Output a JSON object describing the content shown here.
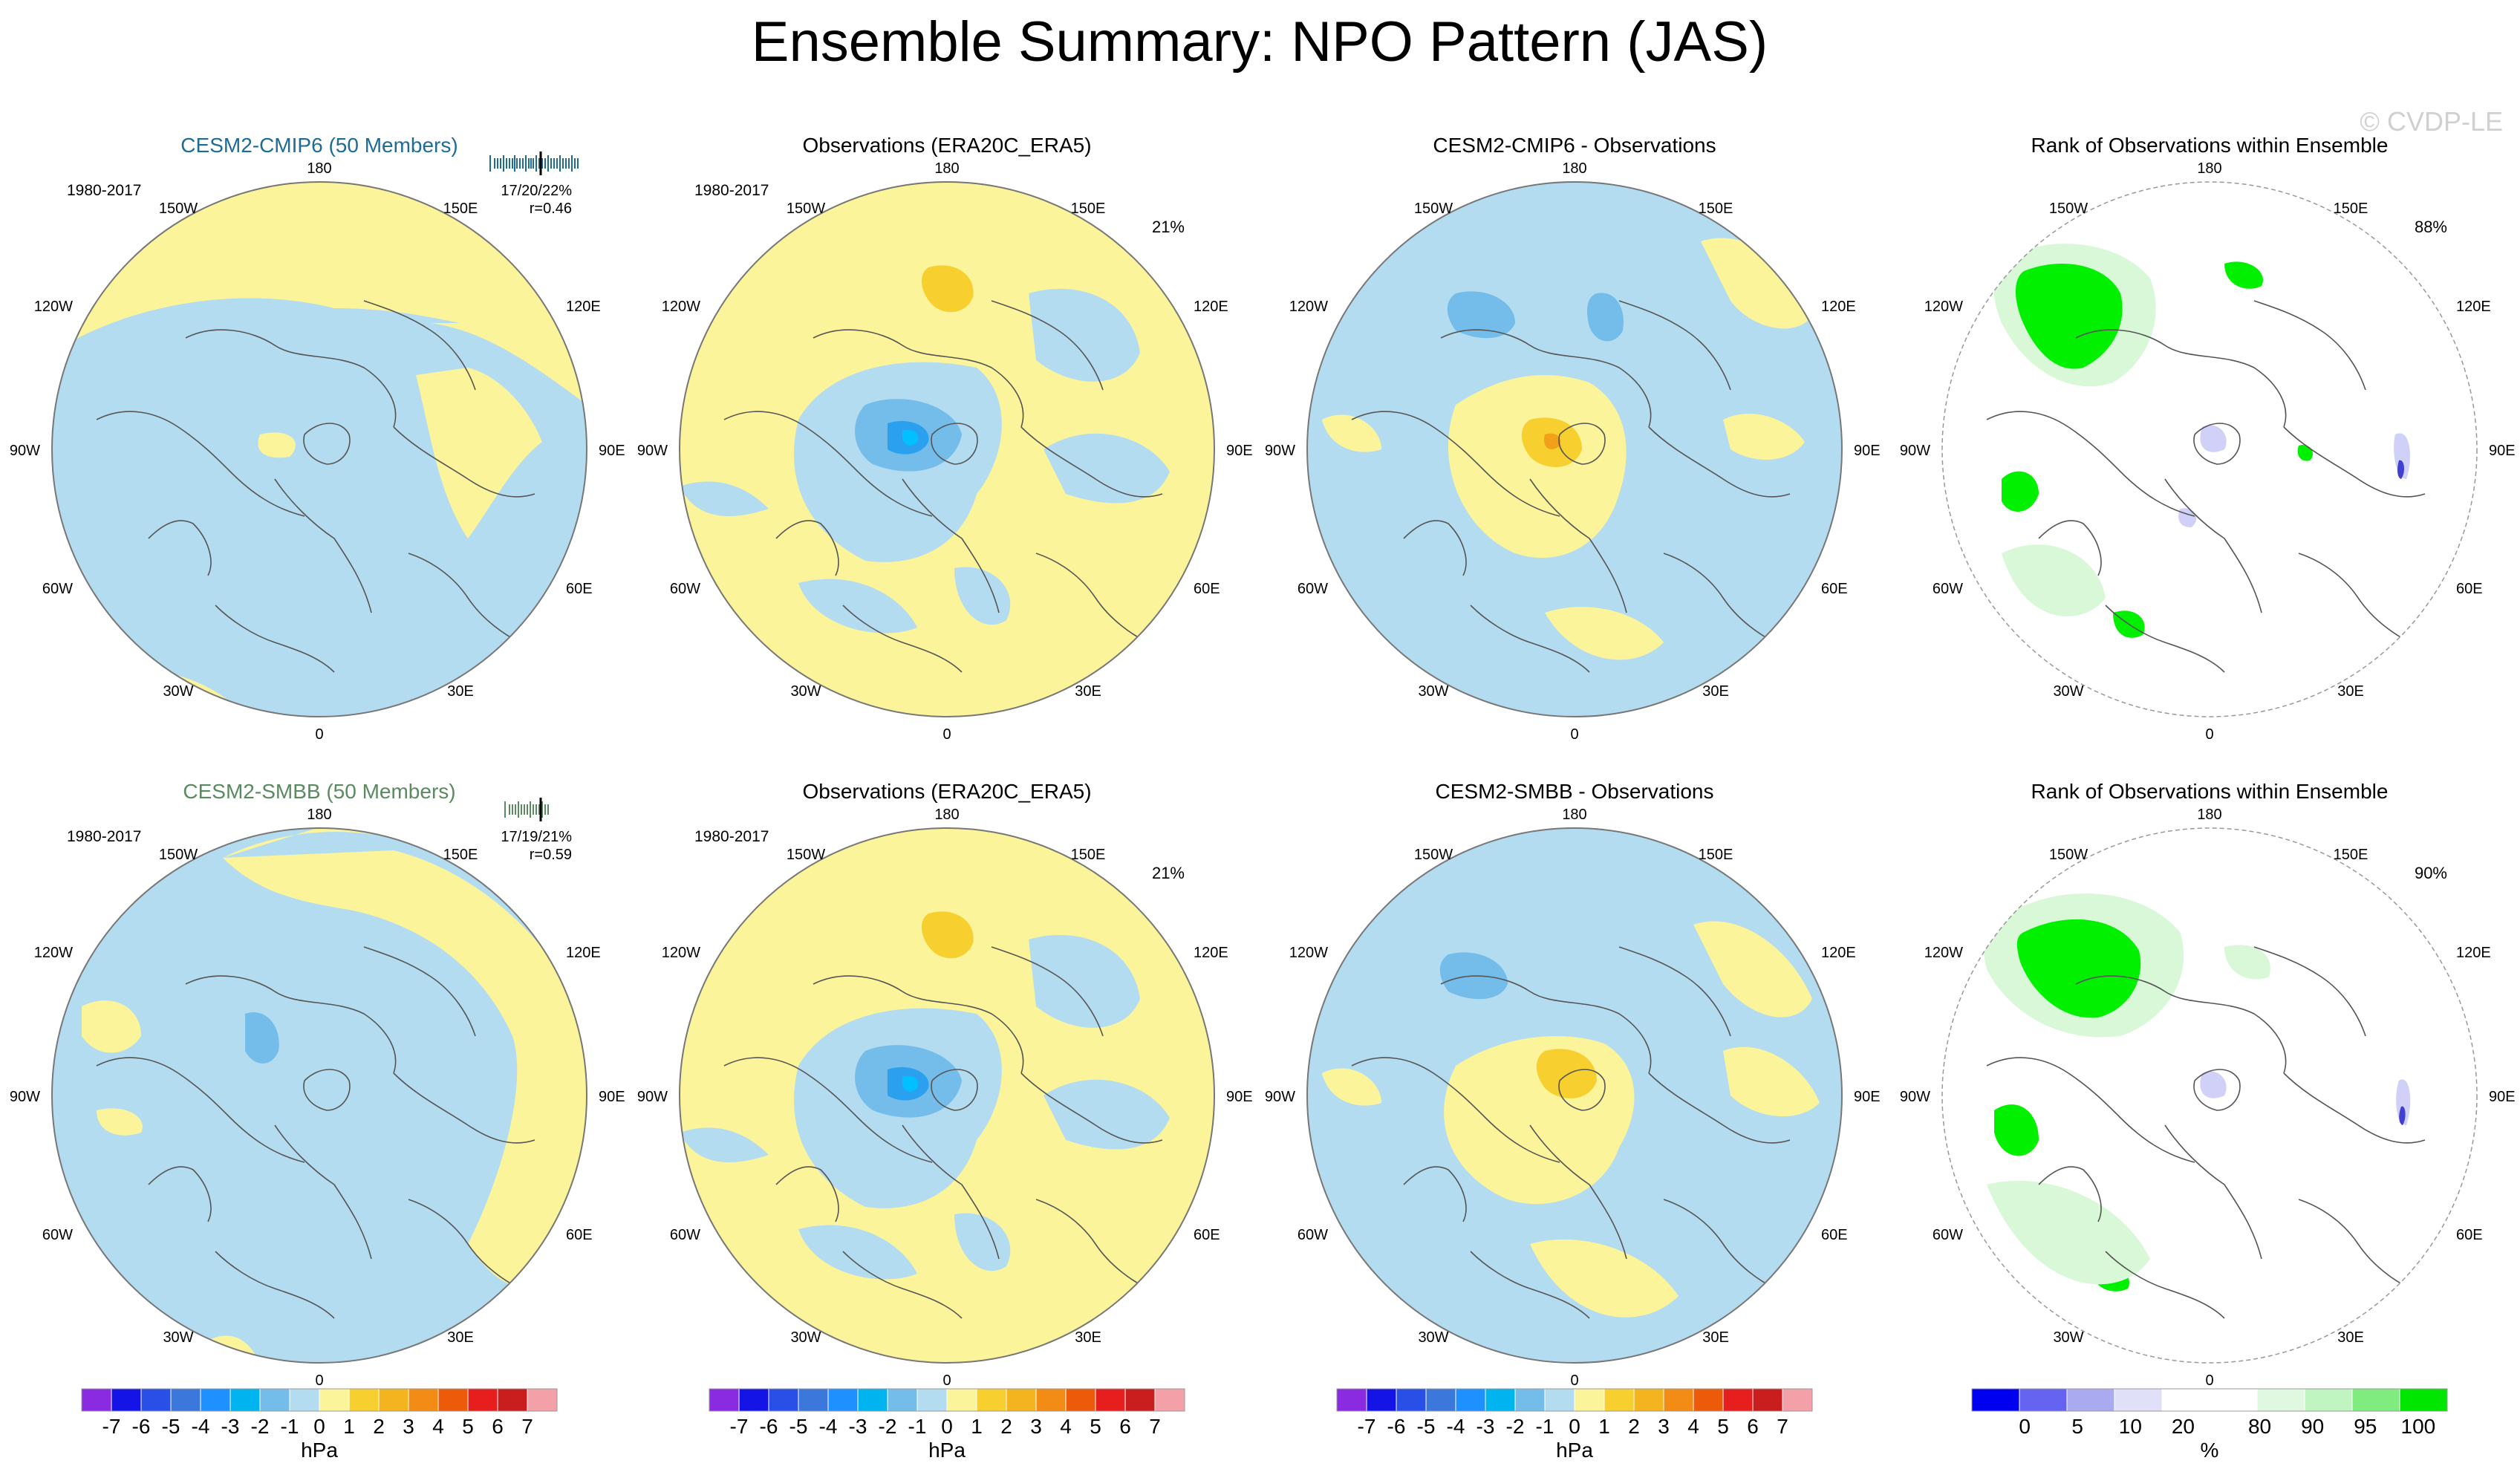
{
  "figure": {
    "title": "Ensemble Summary: NPO Pattern (JAS)",
    "watermark": "© CVDP-LE"
  },
  "colors": {
    "blue_light": "#b4dcf0",
    "blue_mid": "#74bdea",
    "blue_dark": "#2aa0ee",
    "blue_core": "#00c0ff",
    "yellow_light": "#fbf49a",
    "yellow_mid": "#f7cf2e",
    "orange": "#f2a01a",
    "green_bright": "#00f000",
    "green_light": "#d8f8d8",
    "purple_light": "#d0d0f8",
    "purple_dark": "#4040d0",
    "coast": "#555555",
    "cmip6_title": "#1e6c96",
    "smbb_title": "#5a8a60"
  },
  "map_labels": {
    "top": "180",
    "bottom": "0",
    "left": "90W",
    "right": "90E",
    "upper_left_2": "150W",
    "upper_left_1": "120W",
    "lower_left_1": "60W",
    "lower_left_2": "30W",
    "upper_right_2": "150E",
    "upper_right_1": "120E",
    "lower_right_1": "60E",
    "lower_right_2": "30E"
  },
  "panels": [
    {
      "title": "CESM2-CMIP6 (50 Members)",
      "title_color": "cmip6",
      "period": "1980-2017",
      "stat_line1": "17/20/22%",
      "stat_line2": "r=0.46",
      "pct": "",
      "kind": "model1"
    },
    {
      "title": "Observations (ERA20C_ERA5)",
      "title_color": "black",
      "period": "1980-2017",
      "stat_line1": "",
      "stat_line2": "",
      "pct": "21%",
      "kind": "obs"
    },
    {
      "title": "CESM2-CMIP6 - Observations",
      "title_color": "black",
      "period": "",
      "stat_line1": "",
      "stat_line2": "",
      "pct": "",
      "kind": "diff1"
    },
    {
      "title": "Rank of Observations within Ensemble",
      "title_color": "black",
      "period": "",
      "stat_line1": "",
      "stat_line2": "",
      "pct": "88%",
      "kind": "rank1"
    },
    {
      "title": "CESM2-SMBB (50 Members)",
      "title_color": "smbb",
      "period": "1980-2017",
      "stat_line1": "17/19/21%",
      "stat_line2": "r=0.59",
      "pct": "",
      "kind": "model2"
    },
    {
      "title": "Observations (ERA20C_ERA5)",
      "title_color": "black",
      "period": "1980-2017",
      "stat_line1": "",
      "stat_line2": "",
      "pct": "21%",
      "kind": "obs"
    },
    {
      "title": "CESM2-SMBB - Observations",
      "title_color": "black",
      "period": "",
      "stat_line1": "",
      "stat_line2": "",
      "pct": "",
      "kind": "diff2"
    },
    {
      "title": "Rank of Observations within Ensemble",
      "title_color": "black",
      "period": "",
      "stat_line1": "",
      "stat_line2": "",
      "pct": "90%",
      "kind": "rank2"
    }
  ],
  "colorbars": [
    {
      "unit": "hPa",
      "labels": [
        "-7",
        "-6",
        "-5",
        "-4",
        "-3",
        "-2",
        "-1",
        "0",
        "1",
        "2",
        "3",
        "4",
        "5",
        "6",
        "7"
      ],
      "colors": [
        "#8a2be2",
        "#1414e6",
        "#2850e6",
        "#3c78dc",
        "#1e90ff",
        "#00b4f0",
        "#74bdea",
        "#b4dcf0",
        "#fbf49a",
        "#f7cf2e",
        "#f4b41e",
        "#f28c14",
        "#ec5a0a",
        "#e61e1e",
        "#c81e1e",
        "#f4a0a8"
      ]
    },
    {
      "unit": "hPa",
      "labels": [
        "-7",
        "-6",
        "-5",
        "-4",
        "-3",
        "-2",
        "-1",
        "0",
        "1",
        "2",
        "3",
        "4",
        "5",
        "6",
        "7"
      ],
      "colors": [
        "#8a2be2",
        "#1414e6",
        "#2850e6",
        "#3c78dc",
        "#1e90ff",
        "#00b4f0",
        "#74bdea",
        "#b4dcf0",
        "#fbf49a",
        "#f7cf2e",
        "#f4b41e",
        "#f28c14",
        "#ec5a0a",
        "#e61e1e",
        "#c81e1e",
        "#f4a0a8"
      ]
    },
    {
      "unit": "hPa",
      "labels": [
        "-7",
        "-6",
        "-5",
        "-4",
        "-3",
        "-2",
        "-1",
        "0",
        "1",
        "2",
        "3",
        "4",
        "5",
        "6",
        "7"
      ],
      "colors": [
        "#8a2be2",
        "#1414e6",
        "#2850e6",
        "#3c78dc",
        "#1e90ff",
        "#00b4f0",
        "#74bdea",
        "#b4dcf0",
        "#fbf49a",
        "#f7cf2e",
        "#f4b41e",
        "#f28c14",
        "#ec5a0a",
        "#e61e1e",
        "#c81e1e",
        "#f4a0a8"
      ]
    },
    {
      "unit": "%",
      "labels": [
        "0",
        "5",
        "10",
        "20",
        "80",
        "90",
        "95",
        "100"
      ],
      "colors": [
        "#0000f0",
        "#6464f0",
        "#aaaaf0",
        "#e0e0f8",
        "#ffffff",
        "#ffffff",
        "#e0f8e0",
        "#c0f4c0",
        "#80ec80",
        "#00e600"
      ]
    }
  ],
  "chart_data": {
    "type": "polar-stereographic maps (contour fill)",
    "title": "Ensemble Summary: NPO Pattern (JAS)",
    "units": "hPa",
    "maps": [
      {
        "name": "CESM2-CMIP6 (50 Members)",
        "period": "1980-2017",
        "stats": "17/20/22%",
        "r": 0.46,
        "range_hPa": [
          -1,
          1
        ]
      },
      {
        "name": "Observations (ERA20C_ERA5)",
        "period": "1980-2017",
        "pct_variance": 21,
        "extrema_hPa": {
          "arctic_low": -3,
          "pacific_high": 2
        }
      },
      {
        "name": "CESM2-CMIP6 - Observations",
        "extrema_hPa": {
          "arctic": 3,
          "pacific": -2
        }
      },
      {
        "name": "Rank of Observations within Ensemble",
        "pct_area": 88,
        "rank_bins": [
          "0",
          "5",
          "10",
          "20",
          "80",
          "90",
          "95",
          "100"
        ]
      },
      {
        "name": "CESM2-SMBB (50 Members)",
        "period": "1980-2017",
        "stats": "17/19/21%",
        "r": 0.59,
        "extrema_hPa": {
          "arctic_low": -2
        }
      },
      {
        "name": "Observations (ERA20C_ERA5)",
        "period": "1980-2017",
        "pct_variance": 21,
        "extrema_hPa": {
          "arctic_low": -3,
          "pacific_high": 2
        }
      },
      {
        "name": "CESM2-SMBB - Observations",
        "extrema_hPa": {
          "arctic": 2,
          "pacific": -2
        }
      },
      {
        "name": "Rank of Observations within Ensemble",
        "pct_area": 90,
        "rank_bins": [
          "0",
          "5",
          "10",
          "20",
          "80",
          "90",
          "95",
          "100"
        ]
      }
    ]
  }
}
